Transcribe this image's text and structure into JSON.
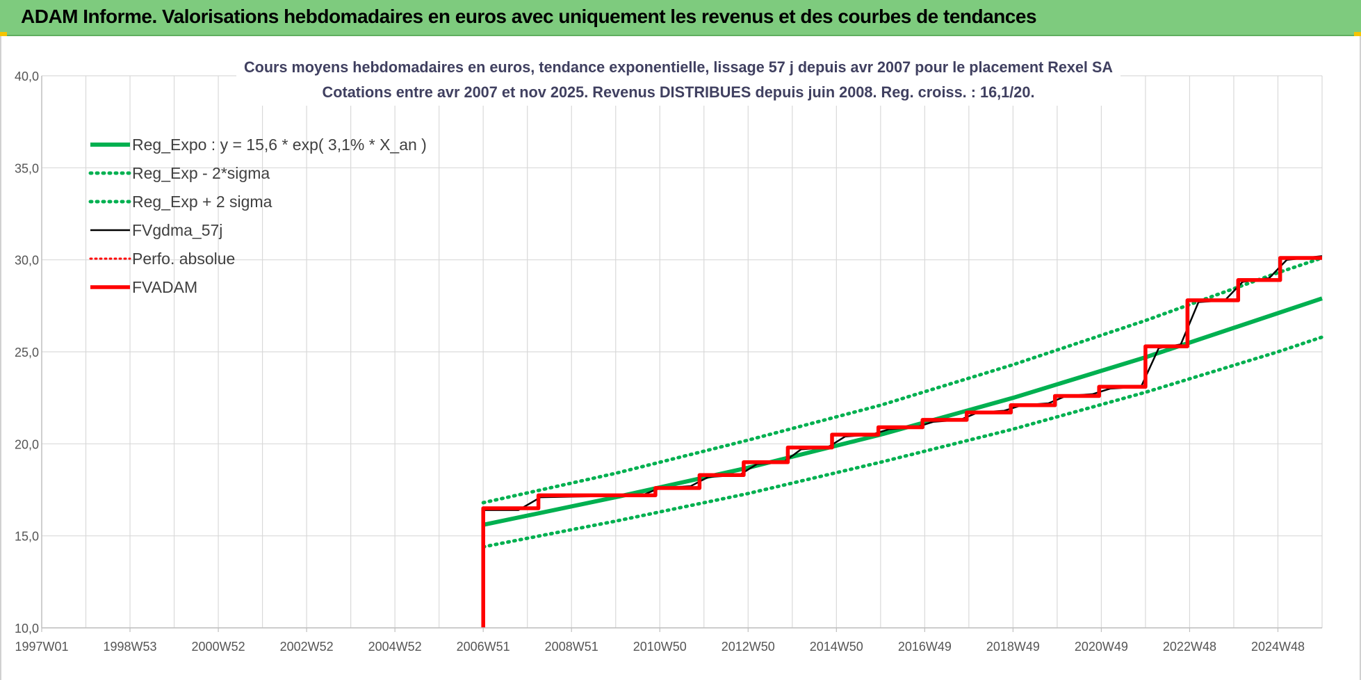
{
  "page_title": "ADAM Informe. Valorisations hebdomadaires en euros avec uniquement les revenus et des courbes de tendances",
  "colors": {
    "header_bg": "#7ecb7e",
    "green": "#00b050",
    "red": "#ff0000",
    "black": "#000000",
    "grid": "#d9d9d9"
  },
  "chart_data": {
    "type": "line",
    "title": "Cours moyens hebdomadaires en euros, tendance exponentielle, lissage 57 j depuis avr 2007 pour le placement Rexel SA",
    "subtitle": "Cotations entre avr 2007 et nov 2025. Revenus DISTRIBUES depuis juin 2008. Reg. croiss. : 16,1/20.",
    "xlabel": "",
    "ylabel": "",
    "ylim": [
      10,
      40
    ],
    "yticks": [
      "10,0",
      "15,0",
      "20,0",
      "25,0",
      "30,0",
      "35,0",
      "40,0"
    ],
    "xlim": [
      1997.0,
      2026.0
    ],
    "xtick_labels": [
      "1997W01",
      "1998W53",
      "2000W52",
      "2002W52",
      "2004W52",
      "2006W51",
      "2008W51",
      "2010W50",
      "2012W50",
      "2014W50",
      "2016W49",
      "2018W49",
      "2020W49",
      "2022W48",
      "2024W48"
    ],
    "xtick_years": [
      1997.0,
      1999.0,
      2001.0,
      2003.0,
      2005.0,
      2007.0,
      2009.0,
      2011.0,
      2013.0,
      2015.0,
      2017.0,
      2019.0,
      2021.0,
      2023.0,
      2025.0
    ],
    "grid": true,
    "legend_position": "top-left",
    "legend": [
      {
        "name": "Reg_Expo : y = 15,6 * exp( 3,1% *  X_an )",
        "color": "#00b050",
        "style": "solid-thick"
      },
      {
        "name": "Reg_Exp - 2*sigma",
        "color": "#00b050",
        "style": "dotted"
      },
      {
        "name": "Reg_Exp + 2 sigma",
        "color": "#00b050",
        "style": "dotted"
      },
      {
        "name": "FVgdma_57j",
        "color": "#000000",
        "style": "solid-thin"
      },
      {
        "name": "Perfo. absolue",
        "color": "#ff0000",
        "style": "dotted"
      },
      {
        "name": "FVADAM",
        "color": "#ff0000",
        "style": "solid-thick"
      }
    ],
    "series": [
      {
        "name": "Reg_Expo : y = 15,6 * exp( 3,1% *  X_an )",
        "x": [
          2007.0,
          2010.0,
          2013.0,
          2016.0,
          2019.0,
          2022.0,
          2025.0,
          2026.0
        ],
        "values": [
          15.6,
          17.1,
          18.7,
          20.5,
          22.5,
          24.7,
          27.1,
          27.9
        ]
      },
      {
        "name": "Reg_Exp - 2*sigma",
        "x": [
          2007.0,
          2010.0,
          2013.0,
          2016.0,
          2019.0,
          2022.0,
          2025.0,
          2026.0
        ],
        "values": [
          14.4,
          15.8,
          17.3,
          19.0,
          20.8,
          22.8,
          25.0,
          25.8
        ]
      },
      {
        "name": "Reg_Exp + 2 sigma",
        "x": [
          2007.0,
          2010.0,
          2013.0,
          2016.0,
          2019.0,
          2022.0,
          2025.0,
          2026.0
        ],
        "values": [
          16.8,
          18.4,
          20.2,
          22.1,
          24.3,
          26.7,
          29.3,
          30.1
        ]
      },
      {
        "name": "FVgdma_57j",
        "x": [
          2007.0,
          2007.8,
          2008.3,
          2010.6,
          2011.0,
          2011.7,
          2012.1,
          2012.8,
          2013.2,
          2013.8,
          2014.2,
          2014.8,
          2015.2,
          2015.8,
          2016.2,
          2016.8,
          2017.2,
          2017.8,
          2018.2,
          2018.8,
          2019.2,
          2019.8,
          2020.2,
          2020.8,
          2021.2,
          2021.9,
          2022.3,
          2022.8,
          2023.2,
          2023.8,
          2024.2,
          2024.8,
          2025.2,
          2026.0
        ],
        "values": [
          16.4,
          16.4,
          17.1,
          17.2,
          17.6,
          17.7,
          18.2,
          18.3,
          18.9,
          19.0,
          19.7,
          19.8,
          20.4,
          20.5,
          20.8,
          20.9,
          21.2,
          21.3,
          21.7,
          21.8,
          22.1,
          22.2,
          22.6,
          22.7,
          23.0,
          23.1,
          25.2,
          25.4,
          27.7,
          27.8,
          28.8,
          29.0,
          30.0,
          30.2
        ]
      },
      {
        "name": "Perfo. absolue",
        "x": [],
        "values": []
      },
      {
        "name": "FVADAM",
        "x": [
          2007.0,
          2007.0,
          2008.25,
          2008.25,
          2010.9,
          2010.9,
          2011.9,
          2011.9,
          2012.9,
          2012.9,
          2013.9,
          2013.9,
          2014.9,
          2014.9,
          2015.95,
          2015.95,
          2016.95,
          2016.95,
          2017.95,
          2017.95,
          2018.95,
          2018.95,
          2019.95,
          2019.95,
          2020.95,
          2020.95,
          2022.0,
          2022.0,
          2022.95,
          2022.95,
          2024.1,
          2024.1,
          2025.05,
          2025.05,
          2026.0
        ],
        "values": [
          10.0,
          16.5,
          16.5,
          17.2,
          17.2,
          17.6,
          17.6,
          18.3,
          18.3,
          19.0,
          19.0,
          19.8,
          19.8,
          20.5,
          20.5,
          20.9,
          20.9,
          21.3,
          21.3,
          21.7,
          21.7,
          22.1,
          22.1,
          22.6,
          22.6,
          23.1,
          23.1,
          25.3,
          25.3,
          27.8,
          27.8,
          28.9,
          28.9,
          30.1,
          30.1
        ]
      }
    ]
  }
}
